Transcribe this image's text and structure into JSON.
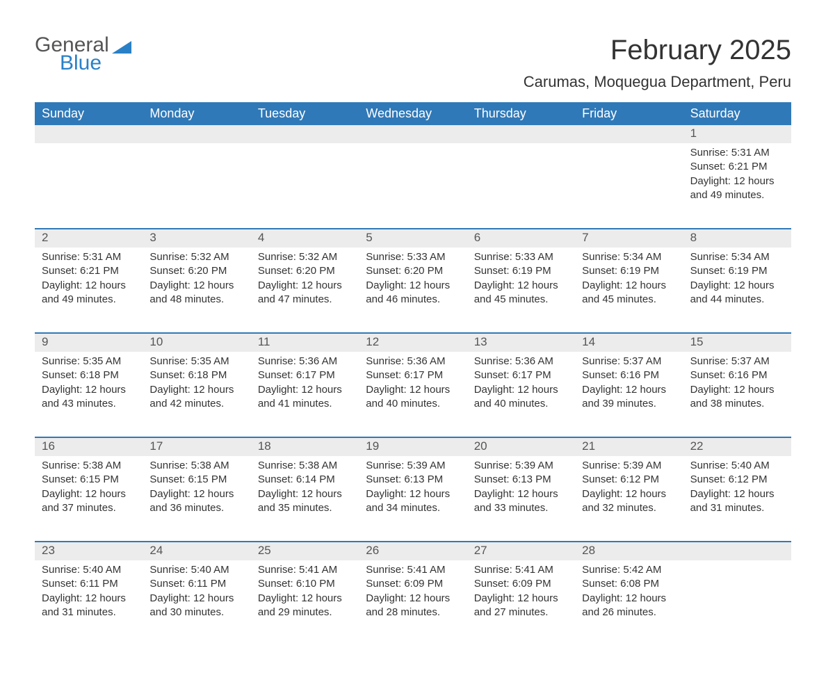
{
  "brand": {
    "part1": "General",
    "part2": "Blue",
    "triangle_color": "#2a80c7"
  },
  "title": "February 2025",
  "location": "Carumas, Moquegua Department, Peru",
  "colors": {
    "header_bg": "#3079b8",
    "header_text": "#ffffff",
    "daynum_bg": "#ececec",
    "divider": "#3079b8",
    "body_text": "#333333"
  },
  "typography": {
    "title_fontsize": 40,
    "location_fontsize": 22,
    "weekday_fontsize": 18,
    "body_fontsize": 15
  },
  "weekdays": [
    "Sunday",
    "Monday",
    "Tuesday",
    "Wednesday",
    "Thursday",
    "Friday",
    "Saturday"
  ],
  "labels": {
    "sunrise": "Sunrise",
    "sunset": "Sunset",
    "daylight": "Daylight"
  },
  "weeks": [
    [
      null,
      null,
      null,
      null,
      null,
      null,
      {
        "day": "1",
        "sunrise": "5:31 AM",
        "sunset": "6:21 PM",
        "daylight": "12 hours and 49 minutes."
      }
    ],
    [
      {
        "day": "2",
        "sunrise": "5:31 AM",
        "sunset": "6:21 PM",
        "daylight": "12 hours and 49 minutes."
      },
      {
        "day": "3",
        "sunrise": "5:32 AM",
        "sunset": "6:20 PM",
        "daylight": "12 hours and 48 minutes."
      },
      {
        "day": "4",
        "sunrise": "5:32 AM",
        "sunset": "6:20 PM",
        "daylight": "12 hours and 47 minutes."
      },
      {
        "day": "5",
        "sunrise": "5:33 AM",
        "sunset": "6:20 PM",
        "daylight": "12 hours and 46 minutes."
      },
      {
        "day": "6",
        "sunrise": "5:33 AM",
        "sunset": "6:19 PM",
        "daylight": "12 hours and 45 minutes."
      },
      {
        "day": "7",
        "sunrise": "5:34 AM",
        "sunset": "6:19 PM",
        "daylight": "12 hours and 45 minutes."
      },
      {
        "day": "8",
        "sunrise": "5:34 AM",
        "sunset": "6:19 PM",
        "daylight": "12 hours and 44 minutes."
      }
    ],
    [
      {
        "day": "9",
        "sunrise": "5:35 AM",
        "sunset": "6:18 PM",
        "daylight": "12 hours and 43 minutes."
      },
      {
        "day": "10",
        "sunrise": "5:35 AM",
        "sunset": "6:18 PM",
        "daylight": "12 hours and 42 minutes."
      },
      {
        "day": "11",
        "sunrise": "5:36 AM",
        "sunset": "6:17 PM",
        "daylight": "12 hours and 41 minutes."
      },
      {
        "day": "12",
        "sunrise": "5:36 AM",
        "sunset": "6:17 PM",
        "daylight": "12 hours and 40 minutes."
      },
      {
        "day": "13",
        "sunrise": "5:36 AM",
        "sunset": "6:17 PM",
        "daylight": "12 hours and 40 minutes."
      },
      {
        "day": "14",
        "sunrise": "5:37 AM",
        "sunset": "6:16 PM",
        "daylight": "12 hours and 39 minutes."
      },
      {
        "day": "15",
        "sunrise": "5:37 AM",
        "sunset": "6:16 PM",
        "daylight": "12 hours and 38 minutes."
      }
    ],
    [
      {
        "day": "16",
        "sunrise": "5:38 AM",
        "sunset": "6:15 PM",
        "daylight": "12 hours and 37 minutes."
      },
      {
        "day": "17",
        "sunrise": "5:38 AM",
        "sunset": "6:15 PM",
        "daylight": "12 hours and 36 minutes."
      },
      {
        "day": "18",
        "sunrise": "5:38 AM",
        "sunset": "6:14 PM",
        "daylight": "12 hours and 35 minutes."
      },
      {
        "day": "19",
        "sunrise": "5:39 AM",
        "sunset": "6:13 PM",
        "daylight": "12 hours and 34 minutes."
      },
      {
        "day": "20",
        "sunrise": "5:39 AM",
        "sunset": "6:13 PM",
        "daylight": "12 hours and 33 minutes."
      },
      {
        "day": "21",
        "sunrise": "5:39 AM",
        "sunset": "6:12 PM",
        "daylight": "12 hours and 32 minutes."
      },
      {
        "day": "22",
        "sunrise": "5:40 AM",
        "sunset": "6:12 PM",
        "daylight": "12 hours and 31 minutes."
      }
    ],
    [
      {
        "day": "23",
        "sunrise": "5:40 AM",
        "sunset": "6:11 PM",
        "daylight": "12 hours and 31 minutes."
      },
      {
        "day": "24",
        "sunrise": "5:40 AM",
        "sunset": "6:11 PM",
        "daylight": "12 hours and 30 minutes."
      },
      {
        "day": "25",
        "sunrise": "5:41 AM",
        "sunset": "6:10 PM",
        "daylight": "12 hours and 29 minutes."
      },
      {
        "day": "26",
        "sunrise": "5:41 AM",
        "sunset": "6:09 PM",
        "daylight": "12 hours and 28 minutes."
      },
      {
        "day": "27",
        "sunrise": "5:41 AM",
        "sunset": "6:09 PM",
        "daylight": "12 hours and 27 minutes."
      },
      {
        "day": "28",
        "sunrise": "5:42 AM",
        "sunset": "6:08 PM",
        "daylight": "12 hours and 26 minutes."
      },
      null
    ]
  ]
}
